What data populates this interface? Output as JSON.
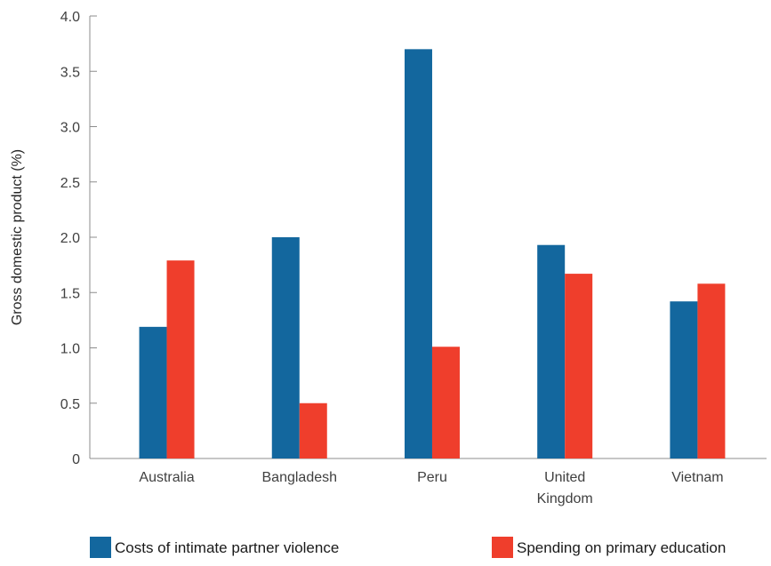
{
  "chart_data": {
    "type": "bar",
    "title": "",
    "xlabel": "",
    "ylabel": "Gross domestic product (%)",
    "ylim": [
      0,
      4.0
    ],
    "yticks": [
      "0",
      "0.5",
      "1.0",
      "1.5",
      "2.0",
      "2.5",
      "3.0",
      "3.5",
      "4.0"
    ],
    "categories": [
      [
        "Australia"
      ],
      [
        "Bangladesh"
      ],
      [
        "Peru"
      ],
      [
        "United",
        "Kingdom"
      ],
      [
        "Vietnam"
      ]
    ],
    "series": [
      {
        "name": "Costs of intimate partner violence",
        "color": "#13679e",
        "values": [
          1.19,
          2.0,
          3.7,
          1.93,
          1.42
        ]
      },
      {
        "name": "Spending on primary education",
        "color": "#ef3e2c",
        "values": [
          1.79,
          0.5,
          1.01,
          1.67,
          1.58
        ]
      }
    ],
    "legend": "bottom",
    "grid": false
  }
}
